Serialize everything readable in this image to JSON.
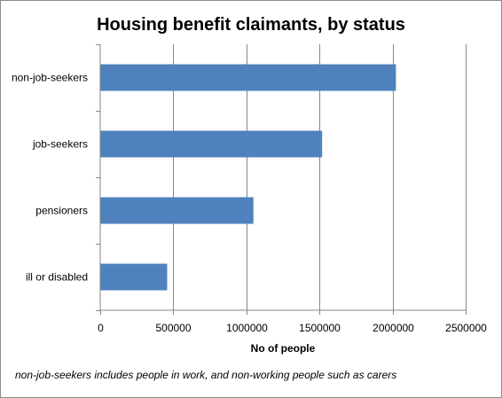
{
  "chart_data": {
    "type": "bar",
    "orientation": "horizontal",
    "title": "Housing benefit claimants, by status",
    "xlabel": "No of people",
    "ylabel": "",
    "categories": [
      "non-job-seekers",
      "job-seekers",
      "pensioners",
      "ill or disabled"
    ],
    "values": [
      2020000,
      1515000,
      1045000,
      455000
    ],
    "xlim": [
      0,
      2500000
    ],
    "xticks": [
      "0",
      "500000",
      "1000000",
      "1500000",
      "2000000",
      "2500000"
    ],
    "grid": true,
    "legend": "none",
    "bar_color": "#4f81bd",
    "annotation": "non-job-seekers includes people in work, and non-working people such as carers"
  }
}
